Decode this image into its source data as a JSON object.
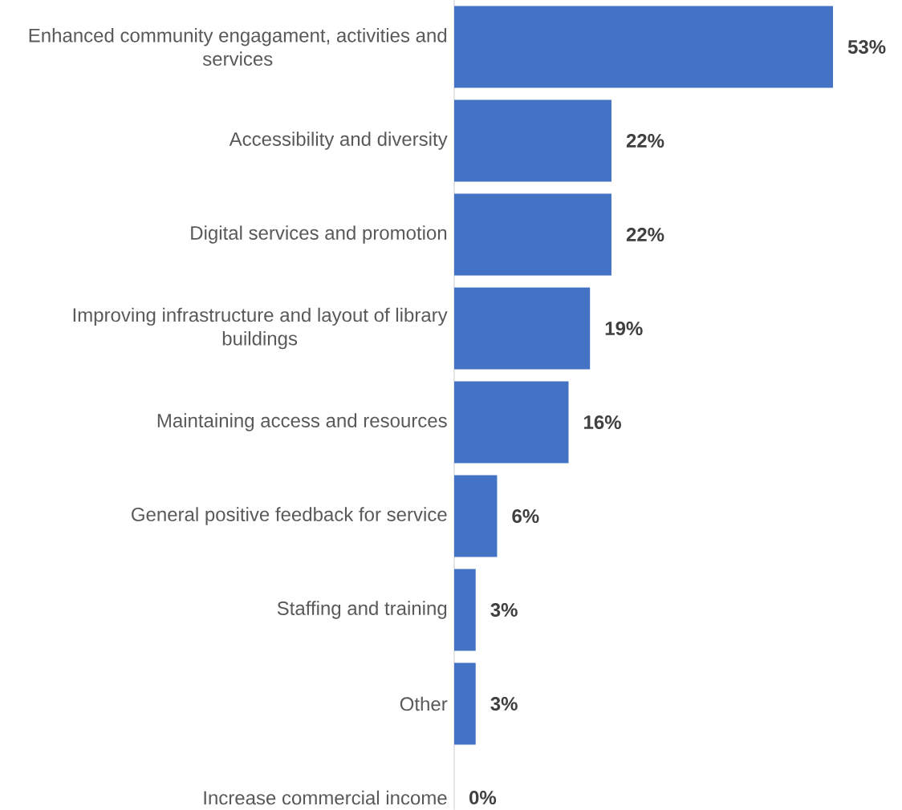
{
  "chart_data": {
    "type": "bar",
    "orientation": "horizontal",
    "categories": [
      "Enhanced community engagament, activities and services",
      "Accessibility and diversity",
      "Digital services and promotion",
      "Improving infrastructure and layout of library buildings",
      "Maintaining access and resources",
      "General positive feedback for service",
      "Staffing and training",
      "Other",
      "Increase commercial income"
    ],
    "values": [
      53,
      22,
      22,
      19,
      16,
      6,
      3,
      3,
      0
    ],
    "value_labels": [
      "53%",
      "22%",
      "22%",
      "19%",
      "16%",
      "6%",
      "3%",
      "3%",
      "0%"
    ],
    "color": "#4472c4"
  }
}
